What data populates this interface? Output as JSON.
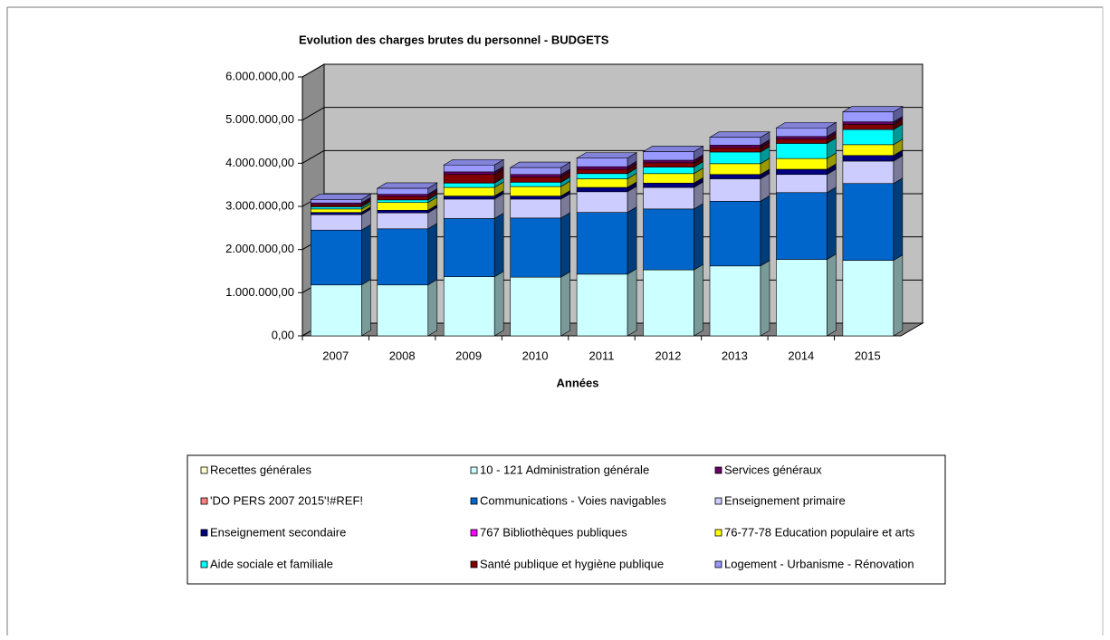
{
  "chart_data": {
    "type": "bar3d_stacked",
    "title": "Evolution  des charges brutes du personnel - BUDGETS",
    "x_label": "Années",
    "categories": [
      "2007",
      "2008",
      "2009",
      "2010",
      "2011",
      "2012",
      "2013",
      "2014",
      "2015"
    ],
    "ylim": [
      0,
      6000000
    ],
    "yticks": [
      {
        "value": 0,
        "label": "0,00"
      },
      {
        "value": 1000000,
        "label": "1.000.000,00"
      },
      {
        "value": 2000000,
        "label": "2.000.000,00"
      },
      {
        "value": 3000000,
        "label": "3.000.000,00"
      },
      {
        "value": 4000000,
        "label": "4.000.000,00"
      },
      {
        "value": 5000000,
        "label": "5.000.000,00"
      },
      {
        "value": 6000000,
        "label": "6.000.000,00"
      }
    ],
    "grid": true,
    "series": [
      {
        "name": "Recettes générales",
        "color": "#ffffcc",
        "values": [
          0,
          0,
          0,
          0,
          0,
          0,
          0,
          0,
          0
        ]
      },
      {
        "name": "10 - 121 Administration générale",
        "color": "#ccffff",
        "values": [
          1180000,
          1180000,
          1370000,
          1360000,
          1430000,
          1530000,
          1620000,
          1770000,
          1750000
        ]
      },
      {
        "name": "Services généraux",
        "color": "#660066",
        "values": [
          40000,
          50000,
          60000,
          60000,
          60000,
          60000,
          60000,
          60000,
          60000
        ]
      },
      {
        "name": "'DO PERS 2007 2015'!#REF!",
        "color": "#ff8080",
        "values": [
          0,
          0,
          0,
          0,
          0,
          0,
          0,
          0,
          0
        ]
      },
      {
        "name": "Communications - Voies navigables",
        "color": "#0066cc",
        "values": [
          1270000,
          1300000,
          1350000,
          1370000,
          1430000,
          1410000,
          1500000,
          1550000,
          1780000
        ]
      },
      {
        "name": "Enseignement primaire",
        "color": "#ccccff",
        "values": [
          360000,
          370000,
          450000,
          440000,
          480000,
          500000,
          520000,
          420000,
          520000
        ]
      },
      {
        "name": "Enseignement secondaire",
        "color": "#000080",
        "values": [
          50000,
          60000,
          70000,
          70000,
          100000,
          100000,
          100000,
          120000,
          130000
        ]
      },
      {
        "name": "767 Bibliothèques publiques",
        "color": "#ff00ff",
        "values": [
          0,
          0,
          0,
          0,
          0,
          0,
          0,
          0,
          0
        ]
      },
      {
        "name": "76-77-78 Education populaire et arts",
        "color": "#ffff00",
        "values": [
          80000,
          180000,
          200000,
          220000,
          200000,
          220000,
          250000,
          250000,
          250000
        ]
      },
      {
        "name": "Aide sociale et familiale",
        "color": "#00ffff",
        "values": [
          50000,
          60000,
          100000,
          100000,
          120000,
          150000,
          270000,
          350000,
          350000
        ]
      },
      {
        "name": "Santé publique et hygiène publique",
        "color": "#800000",
        "values": [
          50000,
          80000,
          200000,
          120000,
          100000,
          100000,
          100000,
          100000,
          120000
        ]
      },
      {
        "name": "Logement - Urbanisme - Rénovation",
        "color": "#9999ff",
        "values": [
          80000,
          140000,
          160000,
          160000,
          200000,
          200000,
          180000,
          200000,
          230000
        ]
      }
    ],
    "stack_order": [
      1,
      4,
      5,
      6,
      7,
      8,
      9,
      10,
      2,
      0,
      3,
      11
    ]
  }
}
